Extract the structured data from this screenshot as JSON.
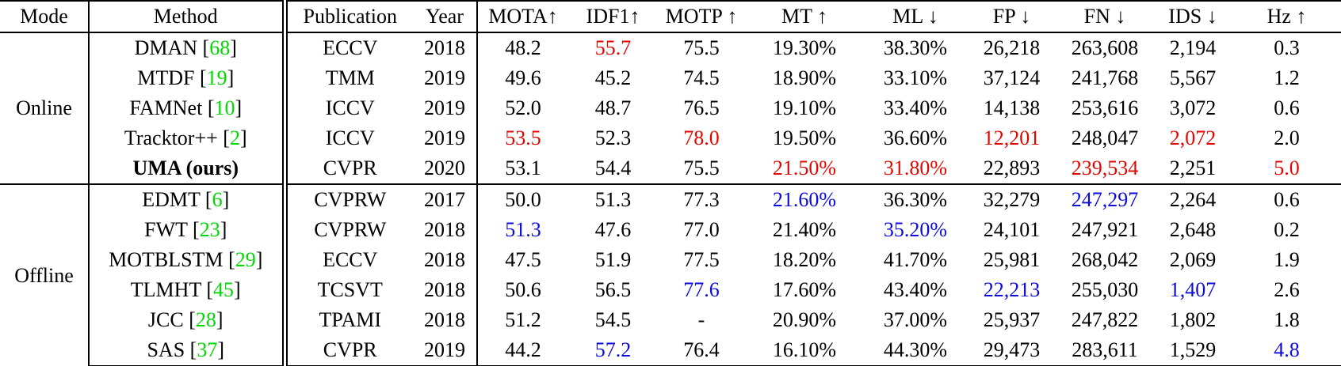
{
  "colors": {
    "best_online_red": "#e10600",
    "best_offline_blue": "#0b0bdc",
    "citation_green": "#00d900",
    "text_black": "#000000",
    "rule_black": "#000000"
  },
  "table": {
    "columns": [
      {
        "key": "mode",
        "label": "Mode"
      },
      {
        "key": "method",
        "label": "Method"
      },
      {
        "key": "pub",
        "label": "Publication"
      },
      {
        "key": "year",
        "label": "Year"
      },
      {
        "key": "mota",
        "label": "MOTA↑"
      },
      {
        "key": "idf1",
        "label": "IDF1↑"
      },
      {
        "key": "motp",
        "label": "MOTP ↑"
      },
      {
        "key": "mt",
        "label": "MT ↑"
      },
      {
        "key": "ml",
        "label": "ML ↓"
      },
      {
        "key": "fp",
        "label": "FP ↓"
      },
      {
        "key": "fn",
        "label": "FN ↓"
      },
      {
        "key": "ids",
        "label": "IDS ↓"
      },
      {
        "key": "hz",
        "label": "Hz ↑"
      }
    ],
    "groups": [
      {
        "mode": "Online",
        "rows": [
          {
            "method": "DMAN",
            "cite": "68",
            "method_bold": false,
            "pub": "ECCV",
            "year": "2018",
            "metrics": [
              [
                "48.2",
                ""
              ],
              [
                "55.7",
                "red"
              ],
              [
                "75.5",
                ""
              ],
              [
                "19.30%",
                ""
              ],
              [
                "38.30%",
                ""
              ],
              [
                "26,218",
                ""
              ],
              [
                "263,608",
                ""
              ],
              [
                "2,194",
                ""
              ],
              [
                "0.3",
                ""
              ]
            ]
          },
          {
            "method": "MTDF",
            "cite": "19",
            "method_bold": false,
            "pub": "TMM",
            "year": "2019",
            "metrics": [
              [
                "49.6",
                ""
              ],
              [
                "45.2",
                ""
              ],
              [
                "74.5",
                ""
              ],
              [
                "18.90%",
                ""
              ],
              [
                "33.10%",
                ""
              ],
              [
                "37,124",
                ""
              ],
              [
                "241,768",
                ""
              ],
              [
                "5,567",
                ""
              ],
              [
                "1.2",
                ""
              ]
            ]
          },
          {
            "method": "FAMNet",
            "cite": "10",
            "method_bold": false,
            "pub": "ICCV",
            "year": "2019",
            "metrics": [
              [
                "52.0",
                ""
              ],
              [
                "48.7",
                ""
              ],
              [
                "76.5",
                ""
              ],
              [
                "19.10%",
                ""
              ],
              [
                "33.40%",
                ""
              ],
              [
                "14,138",
                ""
              ],
              [
                "253,616",
                ""
              ],
              [
                "3,072",
                ""
              ],
              [
                "0.6",
                ""
              ]
            ]
          },
          {
            "method": "Tracktor++",
            "cite": "2",
            "method_bold": false,
            "pub": "ICCV",
            "year": "2019",
            "metrics": [
              [
                "53.5",
                "red"
              ],
              [
                "52.3",
                ""
              ],
              [
                "78.0",
                "red"
              ],
              [
                "19.50%",
                ""
              ],
              [
                "36.60%",
                ""
              ],
              [
                "12,201",
                "red"
              ],
              [
                "248,047",
                ""
              ],
              [
                "2,072",
                "red"
              ],
              [
                "2.0",
                ""
              ]
            ]
          },
          {
            "method": "UMA (ours)",
            "cite": null,
            "method_bold": true,
            "pub": "CVPR",
            "year": "2020",
            "metrics": [
              [
                "53.1",
                ""
              ],
              [
                "54.4",
                ""
              ],
              [
                "75.5",
                ""
              ],
              [
                "21.50%",
                "red"
              ],
              [
                "31.80%",
                "red"
              ],
              [
                "22,893",
                ""
              ],
              [
                "239,534",
                "red"
              ],
              [
                "2,251",
                ""
              ],
              [
                "5.0",
                "red"
              ]
            ]
          }
        ]
      },
      {
        "mode": "Offline",
        "rows": [
          {
            "method": "EDMT",
            "cite": "6",
            "method_bold": false,
            "pub": "CVPRW",
            "year": "2017",
            "metrics": [
              [
                "50.0",
                ""
              ],
              [
                "51.3",
                ""
              ],
              [
                "77.3",
                ""
              ],
              [
                "21.60%",
                "blue"
              ],
              [
                "36.30%",
                ""
              ],
              [
                "32,279",
                ""
              ],
              [
                "247,297",
                "blue"
              ],
              [
                "2,264",
                ""
              ],
              [
                "0.6",
                ""
              ]
            ]
          },
          {
            "method": "FWT",
            "cite": "23",
            "method_bold": false,
            "pub": "CVPRW",
            "year": "2018",
            "metrics": [
              [
                "51.3",
                "blue"
              ],
              [
                "47.6",
                ""
              ],
              [
                "77.0",
                ""
              ],
              [
                "21.40%",
                ""
              ],
              [
                "35.20%",
                "blue"
              ],
              [
                "24,101",
                ""
              ],
              [
                "247,921",
                ""
              ],
              [
                "2,648",
                ""
              ],
              [
                "0.2",
                ""
              ]
            ]
          },
          {
            "method": "MOTBLSTM",
            "cite": "29",
            "method_bold": false,
            "pub": "ECCV",
            "year": "2018",
            "metrics": [
              [
                "47.5",
                ""
              ],
              [
                "51.9",
                ""
              ],
              [
                "77.5",
                ""
              ],
              [
                "18.20%",
                ""
              ],
              [
                "41.70%",
                ""
              ],
              [
                "25,981",
                ""
              ],
              [
                "268,042",
                ""
              ],
              [
                "2,069",
                ""
              ],
              [
                "1.9",
                ""
              ]
            ]
          },
          {
            "method": "TLMHT",
            "cite": "45",
            "method_bold": false,
            "pub": "TCSVT",
            "year": "2018",
            "metrics": [
              [
                "50.6",
                ""
              ],
              [
                "56.5",
                ""
              ],
              [
                "77.6",
                "blue"
              ],
              [
                "17.60%",
                ""
              ],
              [
                "43.40%",
                ""
              ],
              [
                "22,213",
                "blue"
              ],
              [
                "255,030",
                ""
              ],
              [
                "1,407",
                "blue"
              ],
              [
                "2.6",
                ""
              ]
            ]
          },
          {
            "method": "JCC",
            "cite": "28",
            "method_bold": false,
            "pub": "TPAMI",
            "year": "2018",
            "metrics": [
              [
                "51.2",
                ""
              ],
              [
                "54.5",
                ""
              ],
              [
                "-",
                ""
              ],
              [
                "20.90%",
                ""
              ],
              [
                "37.00%",
                ""
              ],
              [
                "25,937",
                ""
              ],
              [
                "247,822",
                ""
              ],
              [
                "1,802",
                ""
              ],
              [
                "1.8",
                ""
              ]
            ]
          },
          {
            "method": "SAS",
            "cite": "37",
            "method_bold": false,
            "pub": "CVPR",
            "year": "2019",
            "metrics": [
              [
                "44.2",
                ""
              ],
              [
                "57.2",
                "blue"
              ],
              [
                "76.4",
                ""
              ],
              [
                "16.10%",
                ""
              ],
              [
                "44.30%",
                ""
              ],
              [
                "29,473",
                ""
              ],
              [
                "283,611",
                ""
              ],
              [
                "1,529",
                ""
              ],
              [
                "4.8",
                "blue"
              ]
            ]
          }
        ]
      }
    ]
  }
}
